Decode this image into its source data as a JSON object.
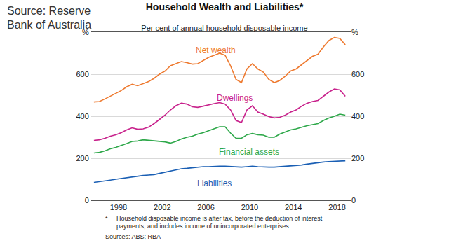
{
  "chart_data": {
    "type": "line",
    "source": "Source: Reserve Bank of Australia",
    "title": "Household Wealth and Liabilities*",
    "subtitle": "Per cent of annual household disposable income",
    "notes": {
      "marker": "*",
      "text": "Household disposable income is after tax, before the deduction of interest payments, and includes income of unincorporated enterprises",
      "sources": "Sources: ABS; RBA"
    },
    "x": [
      1995.75,
      1996.25,
      1996.75,
      1997.25,
      1997.75,
      1998.25,
      1998.75,
      1999.25,
      1999.75,
      2000.25,
      2000.75,
      2001.25,
      2001.75,
      2002.25,
      2002.75,
      2003.25,
      2003.75,
      2004.25,
      2004.75,
      2005.25,
      2005.75,
      2006.25,
      2006.75,
      2007.25,
      2007.75,
      2008.25,
      2008.75,
      2009.25,
      2009.75,
      2010.25,
      2010.75,
      2011.25,
      2011.75,
      2012.25,
      2012.75,
      2013.25,
      2013.75,
      2014.25,
      2014.75,
      2015.25,
      2015.75,
      2016.25,
      2016.75,
      2017.25,
      2017.75,
      2018.25,
      2018.75
    ],
    "series": [
      {
        "name": "Net wealth",
        "color": "#ee7a30",
        "values": [
          468,
          470,
          482,
          495,
          510,
          522,
          540,
          552,
          545,
          555,
          565,
          580,
          600,
          615,
          640,
          650,
          660,
          655,
          648,
          650,
          665,
          680,
          690,
          700,
          690,
          640,
          575,
          560,
          625,
          650,
          625,
          610,
          575,
          560,
          570,
          590,
          615,
          625,
          645,
          665,
          685,
          695,
          730,
          760,
          775,
          770,
          740
        ]
      },
      {
        "name": "Dwellings",
        "color": "#c8228c",
        "values": [
          285,
          288,
          295,
          305,
          312,
          322,
          335,
          345,
          338,
          340,
          348,
          365,
          385,
          405,
          430,
          450,
          462,
          458,
          445,
          442,
          448,
          455,
          460,
          465,
          458,
          430,
          380,
          370,
          430,
          450,
          420,
          410,
          398,
          392,
          395,
          405,
          420,
          430,
          448,
          462,
          470,
          475,
          495,
          515,
          530,
          525,
          495
        ]
      },
      {
        "name": "Financial assets",
        "color": "#2ea84a",
        "values": [
          225,
          228,
          235,
          245,
          252,
          260,
          270,
          280,
          282,
          288,
          285,
          282,
          280,
          278,
          272,
          280,
          292,
          300,
          305,
          315,
          322,
          332,
          340,
          350,
          350,
          320,
          295,
          295,
          312,
          318,
          312,
          310,
          300,
          300,
          315,
          325,
          335,
          340,
          348,
          355,
          360,
          365,
          380,
          392,
          400,
          410,
          405
        ]
      },
      {
        "name": "Liabilities",
        "color": "#1a5fb4",
        "values": [
          85,
          88,
          92,
          96,
          100,
          104,
          108,
          112,
          115,
          118,
          120,
          122,
          128,
          134,
          140,
          145,
          150,
          152,
          155,
          157,
          160,
          160,
          162,
          162,
          162,
          160,
          158,
          158,
          160,
          162,
          160,
          158,
          158,
          158,
          160,
          160,
          162,
          165,
          168,
          172,
          176,
          180,
          182,
          184,
          186,
          188,
          188
        ]
      }
    ],
    "xlim": [
      1995.5,
      2019.25
    ],
    "xticks": [
      1998,
      2002,
      2006,
      2010,
      2014,
      2018
    ],
    "ylim": [
      0,
      800
    ],
    "yticks": [
      0,
      200,
      400,
      600,
      {
        "value": 800,
        "label": "%"
      }
    ],
    "y2lim": [
      0,
      800
    ],
    "y2ticks": [
      0,
      200,
      400,
      600,
      {
        "value": 800,
        "label": "%"
      }
    ],
    "grid": true
  }
}
